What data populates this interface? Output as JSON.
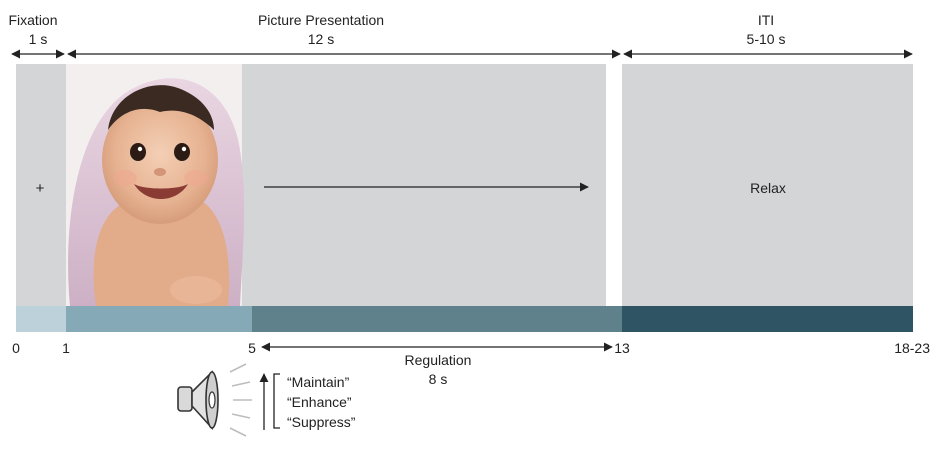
{
  "phases": {
    "fixation": {
      "label": "Fixation",
      "duration": "1 s",
      "symbol": "+"
    },
    "picture": {
      "label": "Picture Presentation",
      "duration": "12 s"
    },
    "iti": {
      "label": "ITI",
      "duration": "5-10 s",
      "panel_text": "Relax"
    }
  },
  "regulation": {
    "label": "Regulation",
    "duration": "8 s"
  },
  "timeline_ticks": [
    "0",
    "1",
    "5",
    "13",
    "18-23"
  ],
  "instructions": [
    "“Maintain”",
    "“Enhance”",
    "“Suppress”"
  ],
  "colors": {
    "panel": "#d4d5d7",
    "bar_fixation": "#bcd1da",
    "bar_picture": "#86a9b8",
    "bar_regulation": "#5e818c",
    "bar_iti": "#2f5463"
  },
  "icons": {
    "speaker": "speaker-icon",
    "photo": "baby-photo"
  }
}
